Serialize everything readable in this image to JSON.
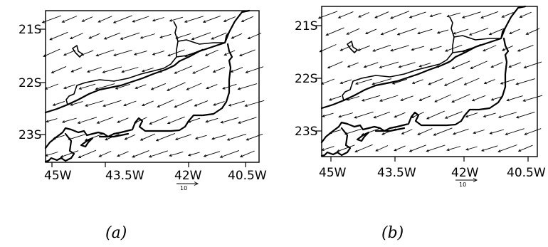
{
  "maps": [
    {
      "panel_id": "a",
      "caption": "(a)",
      "lat_labels": [
        "21S",
        "22S",
        "23S"
      ],
      "lon_labels": [
        "45W",
        "43.5W",
        "42W",
        "40.5W"
      ],
      "reference_vector_label": "10"
    },
    {
      "panel_id": "b",
      "caption": "(b)",
      "lat_labels": [
        "21S",
        "22S",
        "23S"
      ],
      "lon_labels": [
        "45W",
        "43.5W",
        "42W",
        "40.5W"
      ],
      "reference_vector_label": "10"
    }
  ]
}
